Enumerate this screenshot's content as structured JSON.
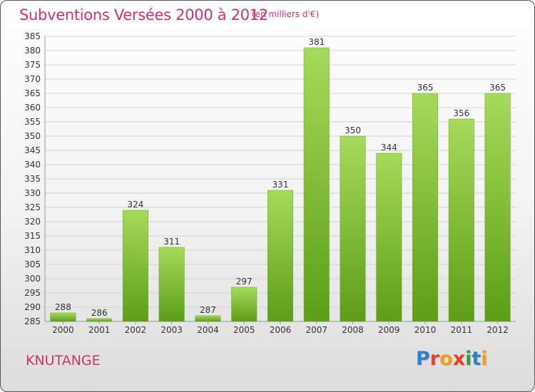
{
  "header": {
    "title": "Subventions Versées 2000 à 2012",
    "subtitle": "(en milliers d'€)"
  },
  "commune": "KNUTANGE",
  "logo": {
    "letters": [
      "P",
      "r",
      "o",
      "x",
      "i",
      "t",
      "i"
    ],
    "colors": [
      "#2f7fd1",
      "#e8402a",
      "#f0a020",
      "#e8402a",
      "#2f9e3a",
      "#2f7fd1",
      "#f0a020"
    ]
  },
  "colors": {
    "accent": "#d0306e",
    "bar_light": "#a6da5a",
    "bar_dark": "#5d9e16"
  },
  "chart_data": {
    "type": "bar",
    "title": "Subventions Versées 2000 à 2012",
    "subtitle": "(en milliers d'€)",
    "categories": [
      "2000",
      "2001",
      "2002",
      "2003",
      "2004",
      "2005",
      "2006",
      "2007",
      "2008",
      "2009",
      "2010",
      "2011",
      "2012"
    ],
    "values": [
      288,
      286,
      324,
      311,
      287,
      297,
      331,
      381,
      350,
      344,
      365,
      356,
      365
    ],
    "ylim": [
      285,
      385
    ],
    "ytick_step": 5,
    "grid": true,
    "legend": "none"
  }
}
